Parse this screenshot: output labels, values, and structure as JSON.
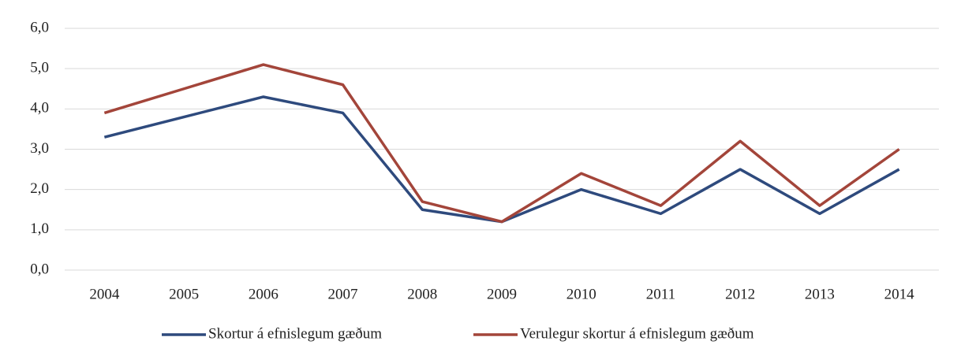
{
  "chart_data": {
    "type": "line",
    "categories": [
      "2004",
      "2005",
      "2006",
      "2007",
      "2008",
      "2009",
      "2010",
      "2011",
      "2012",
      "2013",
      "2014"
    ],
    "series": [
      {
        "name": "Skortur á efnislegum gæðum",
        "color": "#2e4a7d",
        "values": [
          3.3,
          3.8,
          4.3,
          3.9,
          1.5,
          1.2,
          2.0,
          1.4,
          2.5,
          1.4,
          2.5
        ]
      },
      {
        "name": "Verulegur skortur á efnislegum gæðum",
        "color": "#a3453a",
        "values": [
          3.9,
          4.5,
          5.1,
          4.6,
          1.7,
          1.2,
          2.4,
          1.6,
          3.2,
          1.6,
          3.0
        ]
      }
    ],
    "ylim": [
      0,
      6
    ],
    "yticks": [
      {
        "value": 0,
        "label": "0,0"
      },
      {
        "value": 1,
        "label": "1,0"
      },
      {
        "value": 2,
        "label": "2,0"
      },
      {
        "value": 3,
        "label": "3,0"
      },
      {
        "value": 4,
        "label": "4,0"
      },
      {
        "value": 5,
        "label": "5,0"
      },
      {
        "value": 6,
        "label": "6,0"
      }
    ],
    "grid": true,
    "legend": "bottom"
  }
}
